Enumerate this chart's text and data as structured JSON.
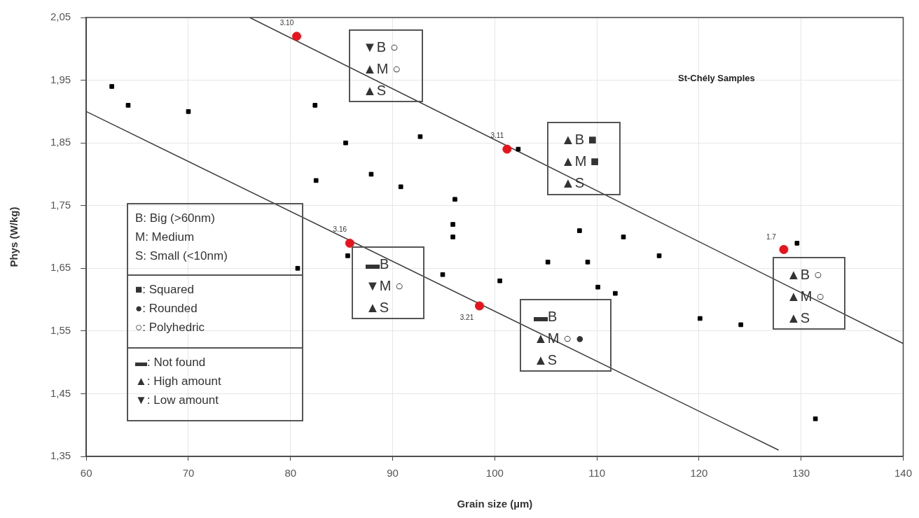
{
  "chart_data": {
    "type": "scatter",
    "title": "St-Chély Samples",
    "xlabel": "Grain size (µm)",
    "ylabel": "Phys (W/kg)",
    "xlim": [
      60,
      140
    ],
    "xticks": [
      60,
      70,
      80,
      90,
      100,
      110,
      120,
      130,
      140
    ],
    "ylim": [
      1.35,
      2.05
    ],
    "yticks": [
      {
        "value": 1.35,
        "label": "1,35"
      },
      {
        "value": 1.45,
        "label": "1,45"
      },
      {
        "value": 1.55,
        "label": "1,55"
      },
      {
        "value": 1.65,
        "label": "1,65"
      },
      {
        "value": 1.75,
        "label": "1,75"
      },
      {
        "value": 1.85,
        "label": "1,85"
      },
      {
        "value": 1.95,
        "label": "1,95"
      },
      {
        "value": 2.05,
        "label": "2,05"
      }
    ],
    "grid": true,
    "legend": false,
    "series": [
      {
        "marker": "square",
        "color": "#000000",
        "x": [
          62.5,
          64.1,
          70.0,
          82.4,
          85.4,
          92.7,
          82.5,
          87.9,
          90.8,
          96.1,
          95.9,
          95.9,
          102.3,
          94.9,
          100.5,
          105.2,
          109.1,
          116.1,
          110.1,
          111.8,
          108.3,
          112.6,
          120.1,
          124.1,
          131.4,
          129.6,
          80.7,
          85.6
        ],
        "values": [
          1.94,
          1.91,
          1.9,
          1.91,
          1.85,
          1.86,
          1.79,
          1.8,
          1.78,
          1.76,
          1.72,
          1.7,
          1.84,
          1.64,
          1.63,
          1.66,
          1.66,
          1.67,
          1.62,
          1.61,
          1.71,
          1.7,
          1.57,
          1.56,
          1.41,
          1.69,
          1.65,
          1.67
        ]
      },
      {
        "marker": "circle",
        "color": "#e8141b",
        "x": [
          80.6,
          101.2,
          85.8,
          98.5,
          128.3
        ],
        "values": [
          2.02,
          1.84,
          1.69,
          1.59,
          1.68
        ]
      },
      {
        "type": "line",
        "marker": "none",
        "color": "#3c3c3c",
        "x": [
          76,
          140
        ],
        "values": [
          2.05,
          1.53
        ]
      },
      {
        "type": "line",
        "marker": "none",
        "color": "#3c3c3c",
        "x": [
          60,
          127.8
        ],
        "values": [
          1.9,
          1.36
        ]
      }
    ],
    "annotations": [
      {
        "text": "3.10",
        "x": 80.6,
        "y": 2.02
      },
      {
        "text": "3.11",
        "x": 101.2,
        "y": 1.84
      },
      {
        "text": "3.16",
        "x": 85.8,
        "y": 1.69
      },
      {
        "text": "3.21",
        "x": 98.5,
        "y": 1.59
      },
      {
        "text": "1.7",
        "x": 128.3,
        "y": 1.68
      },
      "▼B ○\n▲M ○\n▲S",
      "▲B ■\n▲M ■\n▲S",
      "▬B\n▼M ○\n▲S",
      "▬B\n▲M ○ ●\n▲S",
      "▲B ○\n▲M ○\n▲S",
      "B: Big (>60nm)\nM: Medium\nS: Small (<10nm)",
      "■: Squared\n●: Rounded\n○: Polyhedric",
      "▬: Not found\n▲: High amount\n▼: Low amount"
    ]
  }
}
